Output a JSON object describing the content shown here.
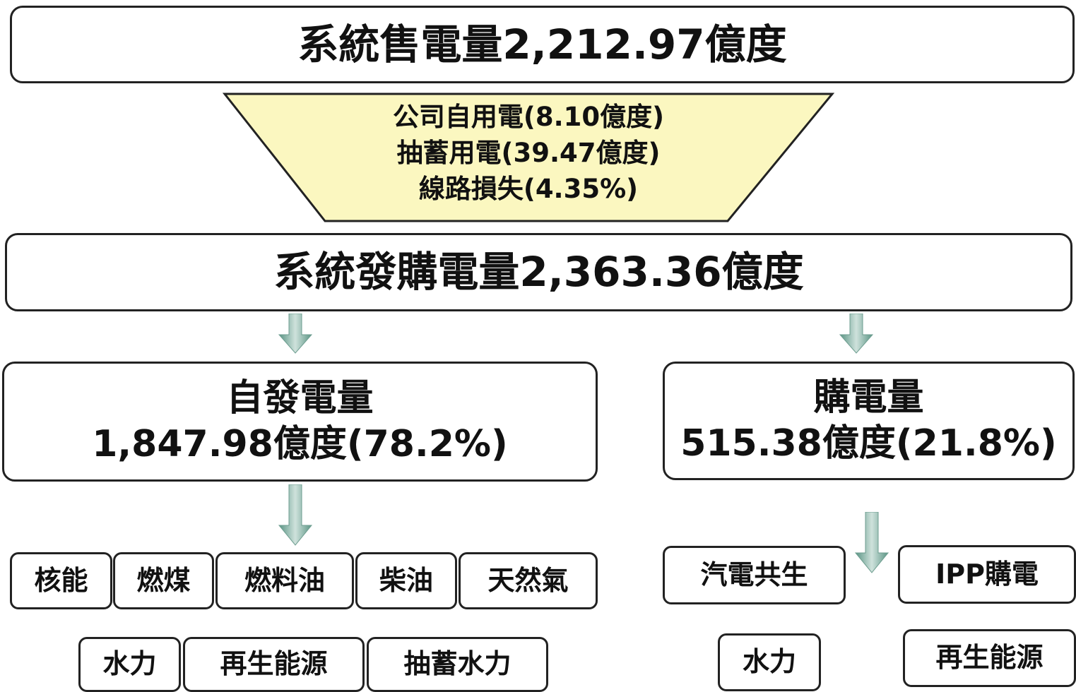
{
  "header": {
    "title": "系統售電量2,212.97億度"
  },
  "deductions": {
    "lines": [
      "公司自用電(8.10億度)",
      "抽蓄用電(39.47億度)",
      "線路損失(4.35%)"
    ]
  },
  "total": {
    "title": "系統發購電量2,363.36億度"
  },
  "branches": [
    {
      "title": "自發電量",
      "value": "1,847.98億度(78.2%)",
      "sources": [
        "核能",
        "燃煤",
        "燃料油",
        "柴油",
        "天然氣",
        "水力",
        "再生能源",
        "抽蓄水力"
      ]
    },
    {
      "title": "購電量",
      "value": "515.38億度(21.8%)",
      "sources": [
        "汽電共生",
        "IPP購電",
        "水力",
        "再生能源"
      ]
    }
  ]
}
